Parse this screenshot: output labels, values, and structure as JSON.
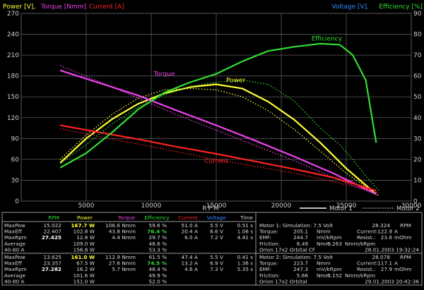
{
  "colors": {
    "background": "#000000",
    "grid": "#5a5a5a",
    "power": "#ffff33",
    "torque": "#ee44ee",
    "current": "#ff2222",
    "efficiency": "#33dd33",
    "voltage": "#3388ff",
    "text": "#d8d8d8",
    "divider": "#9a9a9a"
  },
  "header": {
    "left": {
      "power": "Power [V],",
      "torque": "Torque [Nmm]",
      "current": "Current [A]"
    },
    "right": {
      "voltage": "Voltage [V],",
      "efficiency": "Efficiency [%]"
    }
  },
  "chart_data": {
    "type": "line",
    "xlabel": "RPM",
    "xlim": [
      0,
      30000
    ],
    "x_ticks": [
      0,
      5000,
      10000,
      15000,
      20000,
      25000,
      30000
    ],
    "y_left_lim": [
      0,
      270
    ],
    "y_left_ticks": [
      0,
      30,
      60,
      90,
      120,
      150,
      180,
      210,
      240,
      270
    ],
    "y_right_lim": [
      0,
      90
    ],
    "y_right_ticks": [
      0,
      10,
      20,
      30,
      40,
      50,
      60,
      70,
      80,
      90
    ],
    "grid": true,
    "legend": {
      "position": "bottom-right",
      "solid": "Motor 1",
      "dotted": "Motor 2"
    },
    "series": [
      {
        "name": "Power",
        "motor": "Motor 1",
        "x": [
          3000,
          5000,
          7000,
          9000,
          11000,
          13000,
          15000,
          17000,
          19000,
          21000,
          23000,
          25000,
          27300
        ],
        "values": [
          55,
          90,
          118,
          140,
          155,
          164,
          168,
          162,
          143,
          117,
          84,
          47,
          10
        ]
      },
      {
        "name": "Power",
        "motor": "Motor 2",
        "x": [
          3000,
          5000,
          7000,
          9000,
          11000,
          13000,
          15000,
          17000,
          19000,
          21000,
          23000,
          25000,
          27500
        ],
        "values": [
          60,
          95,
          125,
          148,
          160,
          162,
          160,
          150,
          130,
          103,
          72,
          40,
          8
        ]
      },
      {
        "name": "Torque",
        "motor": "Motor 1",
        "x": [
          3000,
          6000,
          9000,
          12000,
          15000,
          18000,
          21000,
          24000,
          27300
        ],
        "values": [
          188,
          170,
          152,
          130,
          109,
          87,
          64,
          40,
          10
        ]
      },
      {
        "name": "Torque",
        "motor": "Motor 2",
        "x": [
          3000,
          6000,
          9000,
          12000,
          15000,
          18000,
          21000,
          24000,
          27500
        ],
        "values": [
          195,
          172,
          148,
          124,
          102,
          80,
          58,
          34,
          8
        ]
      },
      {
        "name": "Current",
        "motor": "Motor 1",
        "x": [
          3000,
          6000,
          9000,
          12000,
          15000,
          18000,
          21000,
          24000,
          27300
        ],
        "values": [
          109,
          99,
          89,
          78,
          68,
          57,
          46,
          34,
          15
        ]
      },
      {
        "name": "Current",
        "motor": "Motor 2",
        "x": [
          3000,
          6000,
          9000,
          12000,
          15000,
          18000,
          21000,
          24000,
          27500
        ],
        "values": [
          104,
          93,
          82,
          71,
          60,
          50,
          40,
          28,
          12
        ]
      },
      {
        "name": "Efficiency",
        "motor": "Motor 1",
        "x": [
          3000,
          5000,
          7000,
          9000,
          11000,
          13000,
          15000,
          17000,
          19000,
          21000,
          23000,
          24500,
          25500,
          26500,
          27300
        ],
        "values": [
          16,
          23,
          33,
          44,
          52,
          57,
          61,
          67,
          72,
          74,
          75.5,
          75,
          70,
          58,
          28
        ]
      },
      {
        "name": "Efficiency",
        "motor": "Motor 2",
        "x": [
          3000,
          5000,
          7000,
          9000,
          11000,
          13000,
          15000,
          17000,
          19000,
          21000,
          23000,
          24500,
          25500,
          26500,
          27500
        ],
        "values": [
          18,
          27,
          37,
          45,
          51,
          55,
          57,
          58,
          56,
          48,
          35,
          27,
          20,
          12,
          5
        ]
      }
    ],
    "annotations": [
      {
        "text": "Efficiency",
        "x": 23500,
        "y": 231,
        "color": "#33dd33"
      },
      {
        "text": "Power",
        "x": 16500,
        "y": 171,
        "color": "#ffff33"
      },
      {
        "text": "Torque",
        "x": 11000,
        "y": 180,
        "color": "#ee44ee"
      },
      {
        "text": "Current",
        "x": 15000,
        "y": 55,
        "color": "#ff2222"
      }
    ]
  },
  "table": {
    "headers": [
      "RPM",
      "Power",
      "Torque",
      "Efficiency",
      "Current",
      "Voltage",
      "Time"
    ],
    "header_colors": [
      "#33dd33",
      "#ffff33",
      "#ee44ee",
      "#33dd33",
      "#ff2222",
      "#3388ff",
      "#d8d8d8"
    ],
    "motor1_rows": [
      {
        "label": "MaxPow",
        "rpm": "15.022",
        "power": "167.7 W",
        "torque": "106.6 Nmm",
        "eff": "59.6 %",
        "current": "51.0 A",
        "voltage": "5.5 V",
        "time": "0.51 s"
      },
      {
        "label": "MaxEff",
        "rpm": "22.407",
        "power": "102.8 W",
        "torque": "43.8 Nmm",
        "eff": "76.4 %",
        "current": "20.4 A",
        "voltage": "6.6 V",
        "time": "1.06 s"
      },
      {
        "label": "MaxRpm",
        "rpm": "27.425",
        "power": "12.8 W",
        "torque": "4.4 Nmm",
        "eff": "29.7 %",
        "current": "6.0 A",
        "voltage": "7.2 V",
        "time": "4.41 s"
      },
      {
        "label": "Average",
        "rpm": "",
        "power": "109.0 W",
        "torque": "",
        "eff": "48.6 %",
        "current": "",
        "voltage": "",
        "time": ""
      },
      {
        "label": "40-80 A",
        "rpm": "",
        "power": "156.8 W",
        "torque": "",
        "eff": "53.3 %",
        "current": "",
        "voltage": "",
        "time": ""
      }
    ],
    "motor2_rows": [
      {
        "label": "MaxPow",
        "rpm": "13.625",
        "power": "161.0 W",
        "torque": "112.9 Nmm",
        "eff": "61.5 %",
        "current": "47.4 A",
        "voltage": "5.5 V",
        "time": "0.41 s"
      },
      {
        "label": "MaxEff",
        "rpm": "23.357",
        "power": "67.5 W",
        "torque": "27.6 Nmm",
        "eff": "74.5 %",
        "current": "13.2 A",
        "voltage": "6.9 V",
        "time": "1.36 s"
      },
      {
        "label": "MaxRpm",
        "rpm": "27.282",
        "power": "16.2 W",
        "torque": "5.7 Nmm",
        "eff": "48.4 %",
        "current": "4.6 A",
        "voltage": "7.3 V",
        "time": "5.35 s"
      },
      {
        "label": "Average",
        "rpm": "",
        "power": "101.6 W",
        "torque": "",
        "eff": "49.9 %",
        "current": "",
        "voltage": "",
        "time": ""
      },
      {
        "label": "40-80 A",
        "rpm": "",
        "power": "151.0 W",
        "torque": "",
        "eff": "52.0 %",
        "current": "",
        "voltage": "",
        "time": ""
      }
    ],
    "motor1_info": {
      "title": "Motor 1: Simulation: 7.5 Volt",
      "rpm_value": "28.324",
      "rpm_unit": "RPM",
      "rows": [
        [
          "Torque:",
          "205.1",
          "Nmm",
          "Current:",
          "122.9",
          "A"
        ],
        [
          "EMF:",
          "244.7",
          "mV/kRpm",
          "Resist.:",
          "23.6",
          "mOhm"
        ],
        [
          "Friction:",
          "6.49",
          "Nmm",
          "0.263",
          "Nmm/kRpm",
          ""
        ]
      ],
      "name": "Orion 17x2 Orbital CF",
      "date": "28.01.2003 19:32:24"
    },
    "motor2_info": {
      "title": "Motor 2: Simulation: 7.5 Volt",
      "rpm_value": "28.078",
      "rpm_unit": "RPM",
      "rows": [
        [
          "Torque:",
          "223.7",
          "Nmm",
          "Current:",
          "117.1",
          "A"
        ],
        [
          "EMF:",
          "247.3",
          "mV/kRpm",
          "Resist.:",
          "27.9",
          "mOhm"
        ],
        [
          "Friction:",
          "5.66",
          "Nmm",
          "0.152",
          "Nmm/kRpm",
          ""
        ]
      ],
      "name": "Orion 17x2 Orbital",
      "date": "29.01.2003 20:42:36"
    }
  }
}
